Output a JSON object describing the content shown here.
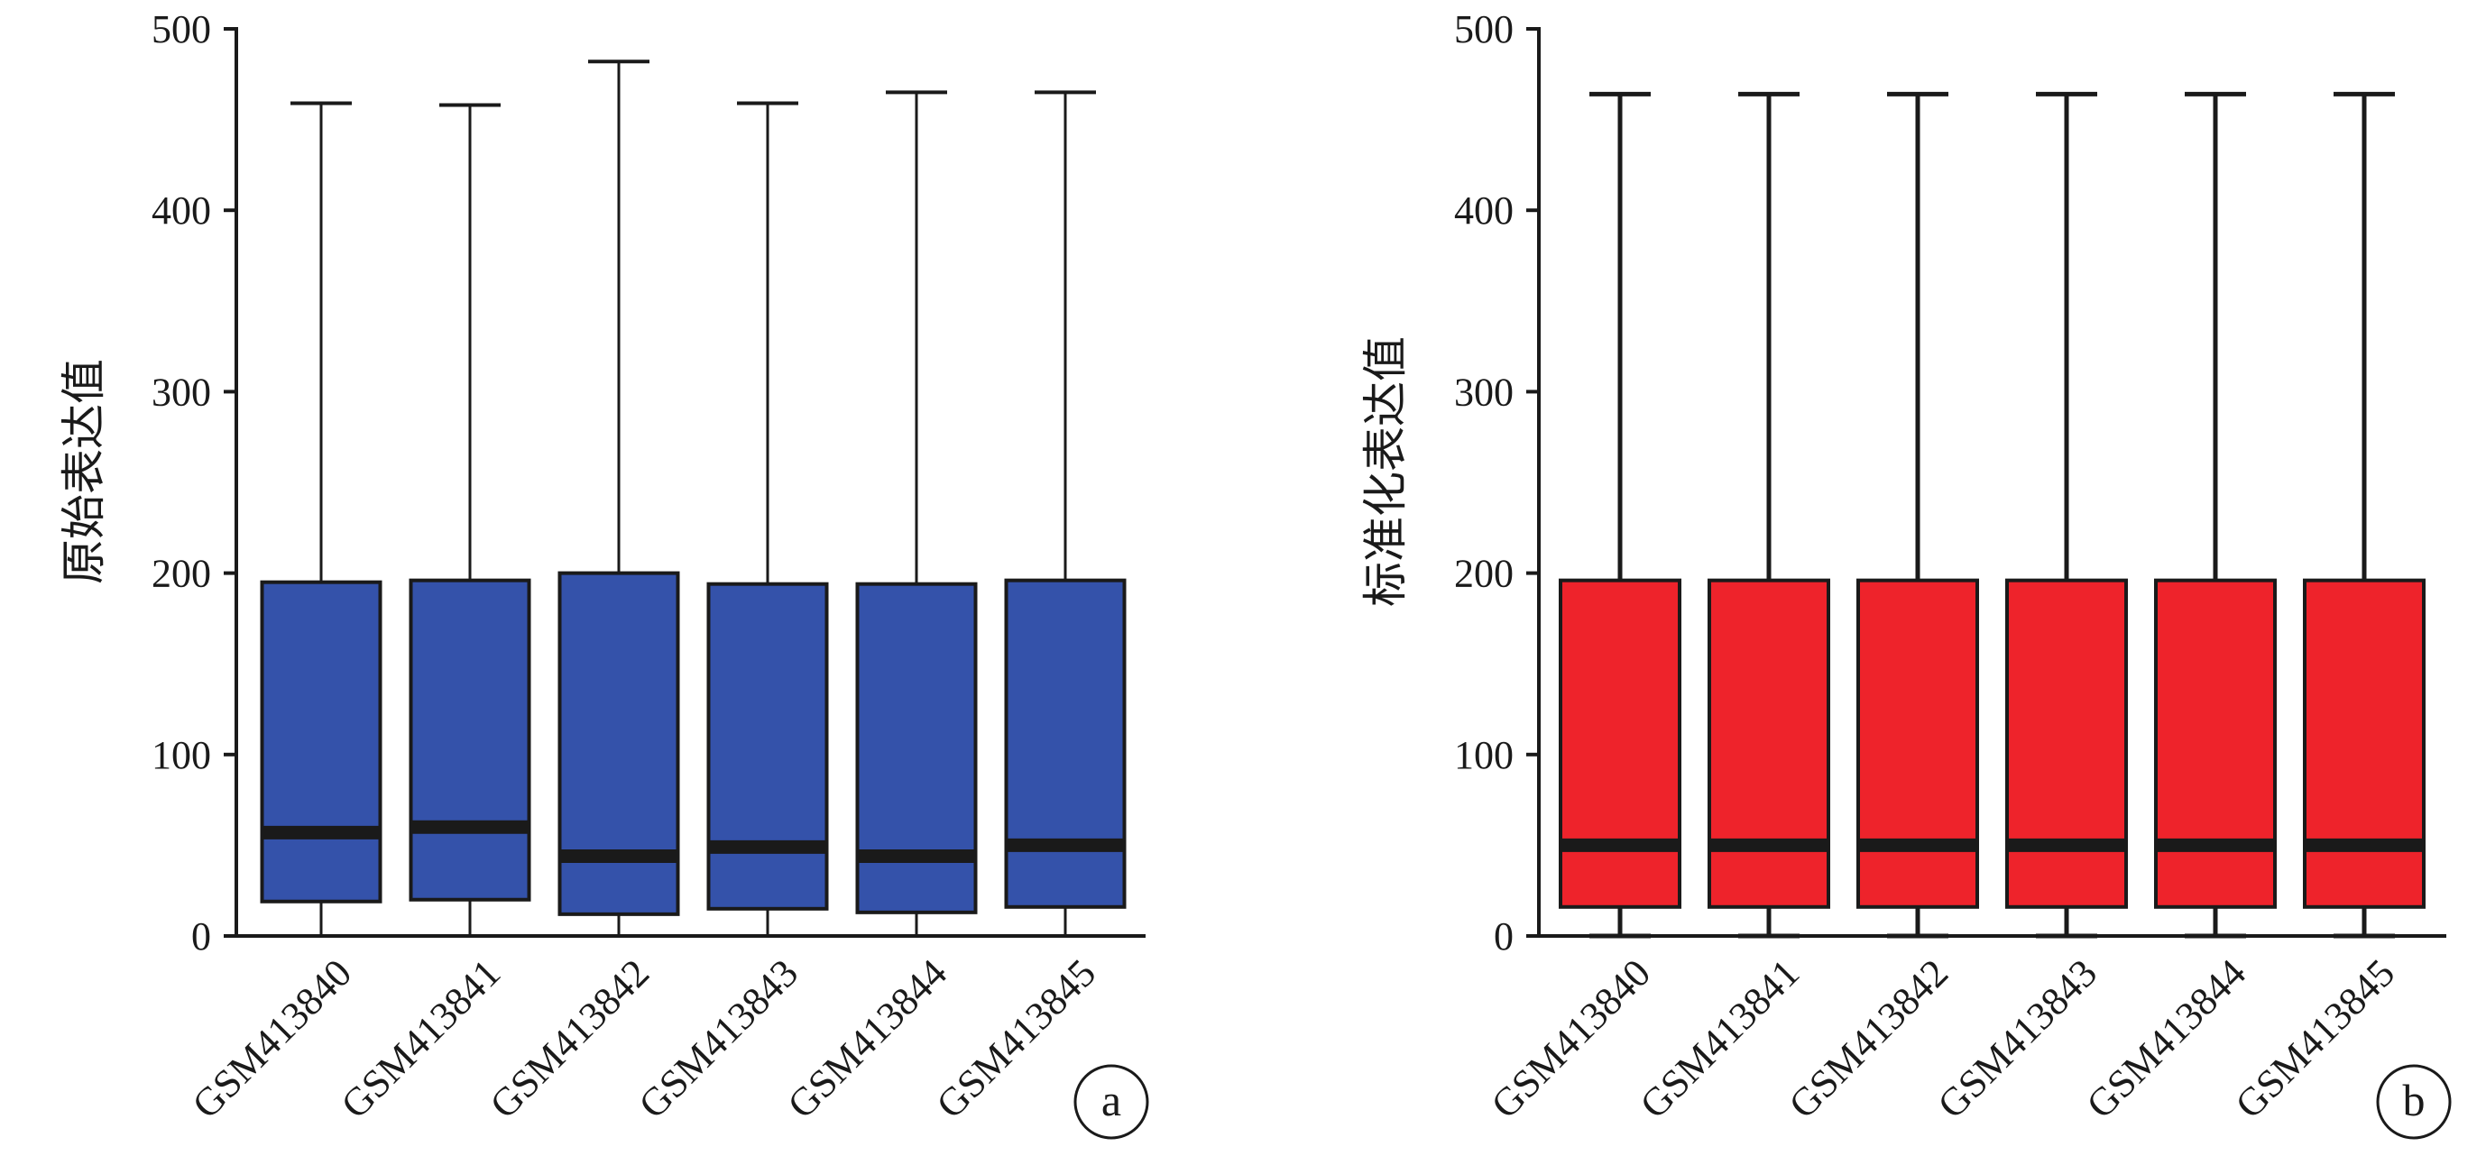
{
  "chart_data": [
    {
      "type": "box",
      "panel_label": "a",
      "ylabel": "原始表达值",
      "xlabel": "",
      "ylim": [
        0,
        500
      ],
      "yticks": [
        0,
        100,
        200,
        300,
        400,
        500
      ],
      "grid": false,
      "box_color": "#3452AA",
      "categories": [
        "GSM413840",
        "GSM413841",
        "GSM413842",
        "GSM413843",
        "GSM413844",
        "GSM413845"
      ],
      "boxes": [
        {
          "min": 0,
          "q1": 19,
          "median": 57,
          "q3": 195,
          "max": 459
        },
        {
          "min": 0,
          "q1": 20,
          "median": 60,
          "q3": 196,
          "max": 458
        },
        {
          "min": 0,
          "q1": 12,
          "median": 44,
          "q3": 200,
          "max": 482
        },
        {
          "min": 0,
          "q1": 15,
          "median": 49,
          "q3": 194,
          "max": 459
        },
        {
          "min": 0,
          "q1": 13,
          "median": 44,
          "q3": 194,
          "max": 465
        },
        {
          "min": 0,
          "q1": 16,
          "median": 50,
          "q3": 196,
          "max": 465
        }
      ]
    },
    {
      "type": "box",
      "panel_label": "b",
      "ylabel": "标准化表达值",
      "xlabel": "",
      "ylim": [
        0,
        500
      ],
      "yticks": [
        0,
        100,
        200,
        300,
        400,
        500
      ],
      "grid": false,
      "box_color": "#EE232B",
      "categories": [
        "GSM413840",
        "GSM413841",
        "GSM413842",
        "GSM413843",
        "GSM413844",
        "GSM413845"
      ],
      "boxes": [
        {
          "min": 0,
          "q1": 16,
          "median": 50,
          "q3": 196,
          "max": 464
        },
        {
          "min": 0,
          "q1": 16,
          "median": 50,
          "q3": 196,
          "max": 464
        },
        {
          "min": 0,
          "q1": 16,
          "median": 50,
          "q3": 196,
          "max": 464
        },
        {
          "min": 0,
          "q1": 16,
          "median": 50,
          "q3": 196,
          "max": 464
        },
        {
          "min": 0,
          "q1": 16,
          "median": 50,
          "q3": 196,
          "max": 464
        },
        {
          "min": 0,
          "q1": 16,
          "median": 50,
          "q3": 196,
          "max": 464
        }
      ]
    }
  ]
}
